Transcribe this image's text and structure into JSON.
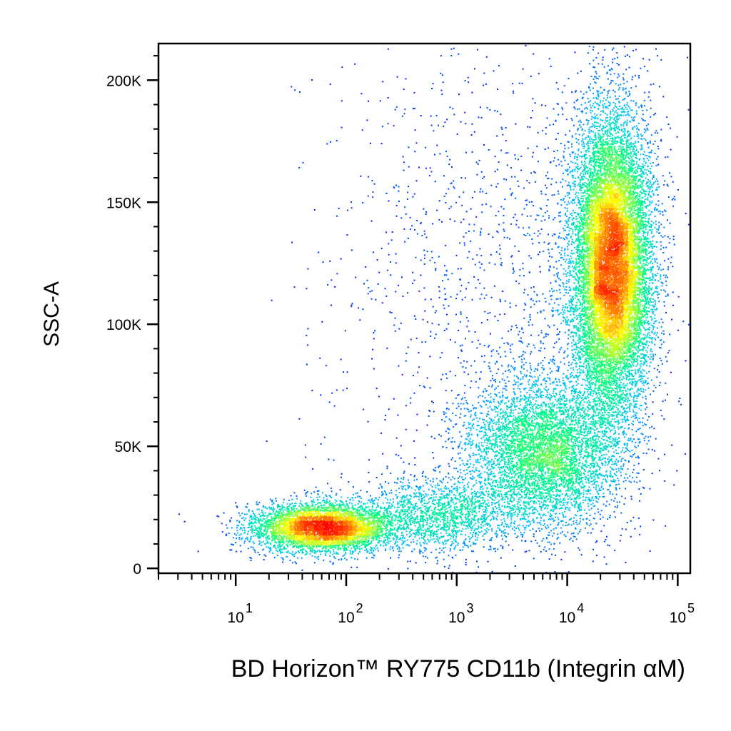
{
  "chart_data": {
    "type": "scatter",
    "subtype": "flow-cytometry-density-dot-plot",
    "title": "",
    "xlabel": "BD Horizon™ RY775 CD11b (Integrin αM)",
    "ylabel": "SSC-A",
    "x_scale": "log",
    "xlim": [
      2,
      130000
    ],
    "ylim": [
      -2000,
      215000
    ],
    "x_ticks": [
      {
        "value": 10,
        "base": "10",
        "exp": "1"
      },
      {
        "value": 100,
        "base": "10",
        "exp": "2"
      },
      {
        "value": 1000,
        "base": "10",
        "exp": "3"
      },
      {
        "value": 10000,
        "base": "10",
        "exp": "4"
      },
      {
        "value": 100000,
        "base": "10",
        "exp": "5"
      }
    ],
    "y_ticks": [
      {
        "value": 0,
        "label": "0"
      },
      {
        "value": 50000,
        "label": "50K"
      },
      {
        "value": 100000,
        "label": "100K"
      },
      {
        "value": 150000,
        "label": "150K"
      },
      {
        "value": 200000,
        "label": "200K"
      }
    ],
    "grid": false,
    "legend": "none",
    "density_colormap": [
      "#0000ff",
      "#00bfff",
      "#00ff80",
      "#ffff00",
      "#ff0000"
    ],
    "populations": [
      {
        "x_center": 25000,
        "y_center": 125000,
        "x_log_sd": 0.18,
        "y_sd": 30000,
        "weight": 0.52
      },
      {
        "x_center": 6000,
        "y_center": 48000,
        "x_log_sd": 0.35,
        "y_sd": 16000,
        "weight": 0.2
      },
      {
        "x_center": 60,
        "y_center": 17000,
        "x_log_sd": 0.32,
        "y_sd": 5000,
        "weight": 0.18
      },
      {
        "x_center": 700,
        "y_center": 22000,
        "x_log_sd": 0.35,
        "y_sd": 8000,
        "weight": 0.06
      },
      {
        "x_center": 3000,
        "y_center": 120000,
        "x_log_sd": 0.7,
        "y_sd": 50000,
        "weight": 0.04
      }
    ]
  }
}
